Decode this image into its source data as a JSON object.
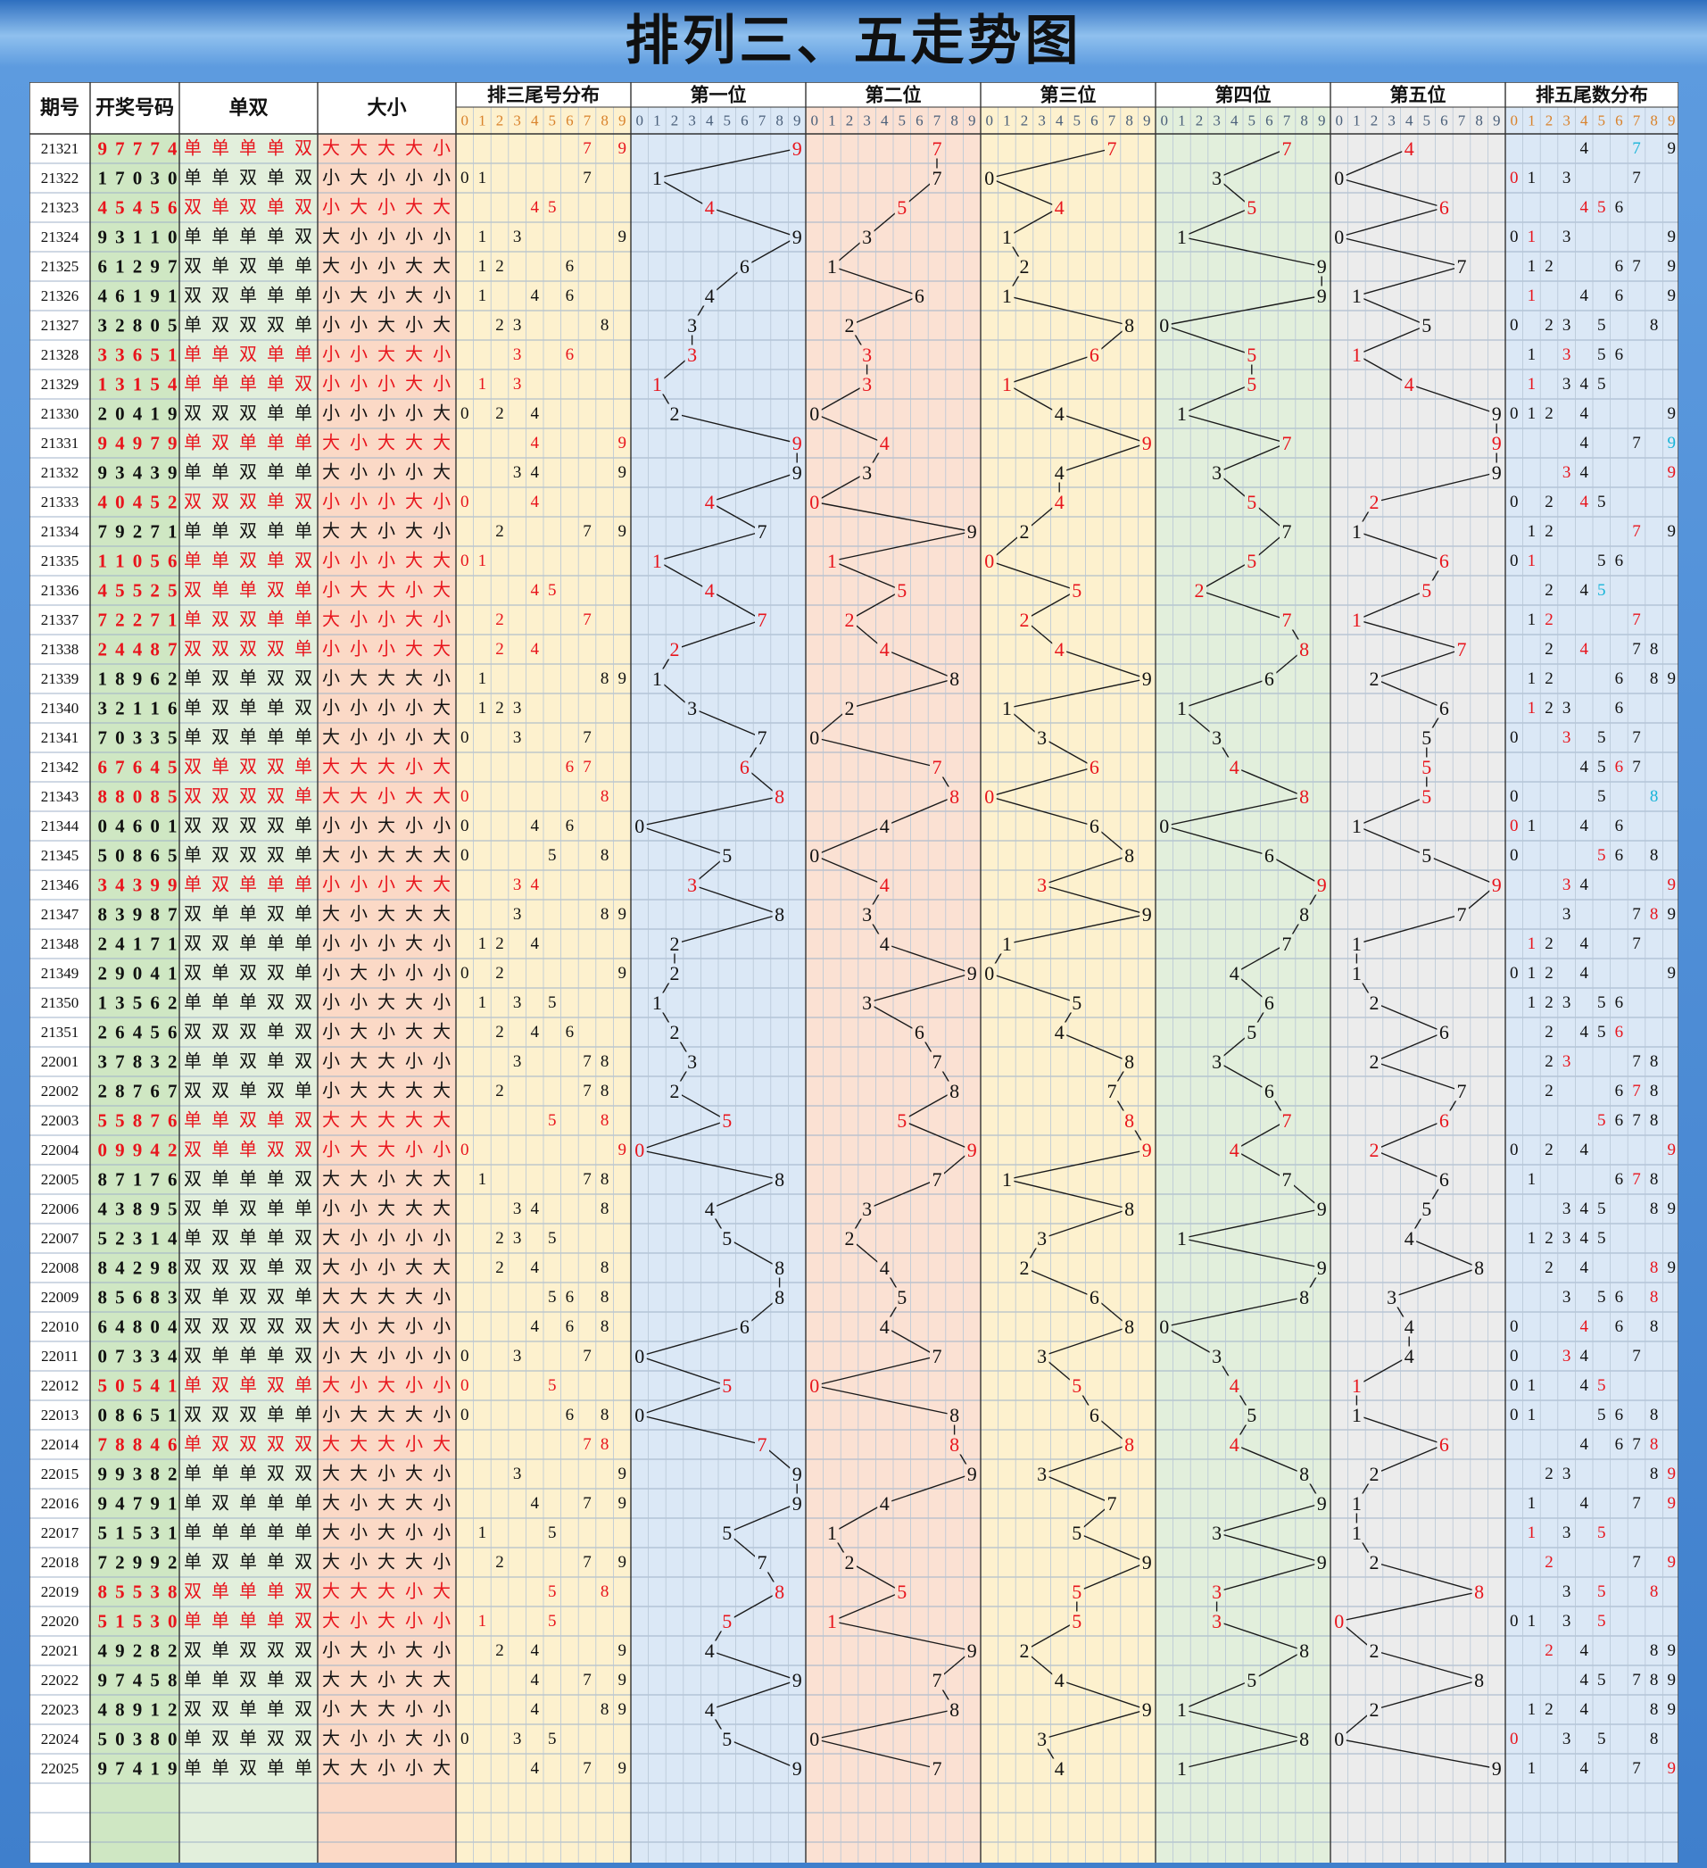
{
  "title": "排列三、五走势图",
  "headers": {
    "period": "期号",
    "draw": "开奖号码",
    "oddeven": "单双",
    "bigsmall": "大小",
    "p3dist": "排三尾号分布",
    "pos": [
      "第一位",
      "第二位",
      "第三位",
      "第四位",
      "第五位"
    ],
    "p5dist": "排五尾数分布"
  },
  "digits": [
    "0",
    "1",
    "2",
    "3",
    "4",
    "5",
    "6",
    "7",
    "8",
    "9"
  ],
  "labels": {
    "big": "大",
    "small": "小",
    "odd": "单",
    "even": "双"
  },
  "colors": {
    "red": "#e8141c",
    "black": "#111111",
    "cyan": "#18b4d8",
    "draw_bg": "#cfe7c3",
    "oe_bg": "#fbd9c6",
    "bs_bg": "#e2efdc",
    "p3_bg": "#fdf1ce",
    "pos_bg": [
      "#dbe8f6",
      "#fbe1d3",
      "#fdf1ce",
      "#e2efdc",
      "#ececec"
    ],
    "p5_bg": "#dbe8f6"
  },
  "chart_data": {
    "type": "table",
    "periods": [
      "21321",
      "21322",
      "21323",
      "21324",
      "21325",
      "21326",
      "21327",
      "21328",
      "21329",
      "21330",
      "21331",
      "21332",
      "21333",
      "21334",
      "21335",
      "21336",
      "21337",
      "21338",
      "21339",
      "21340",
      "21341",
      "21342",
      "21343",
      "21344",
      "21345",
      "21346",
      "21347",
      "21348",
      "21349",
      "21350",
      "21351",
      "22001",
      "22002",
      "22003",
      "22004",
      "22005",
      "22006",
      "22007",
      "22008",
      "22009",
      "22010",
      "22011",
      "22012",
      "22013",
      "22014",
      "22015",
      "22016",
      "22017",
      "22018",
      "22019",
      "22020",
      "22021",
      "22022",
      "22023",
      "22024",
      "22025"
    ],
    "draws": [
      "97774",
      "17030",
      "45456",
      "93110",
      "61297",
      "46191",
      "32805",
      "33651",
      "13154",
      "20419",
      "94979",
      "93439",
      "40452",
      "79271",
      "11056",
      "45525",
      "72271",
      "24487",
      "18962",
      "32116",
      "70335",
      "67645",
      "88085",
      "04601",
      "50865",
      "34399",
      "83987",
      "24171",
      "29041",
      "13562",
      "26456",
      "37832",
      "28767",
      "55876",
      "09942",
      "87176",
      "43895",
      "52314",
      "84298",
      "85683",
      "64804",
      "07334",
      "50541",
      "08651",
      "78846",
      "99382",
      "94791",
      "51531",
      "72992",
      "85538",
      "51530",
      "49282",
      "97458",
      "48912",
      "50380",
      "97419"
    ],
    "red_rows": [
      0,
      2,
      7,
      8,
      10,
      12,
      14,
      15,
      16,
      17,
      21,
      22,
      25,
      33,
      34,
      42,
      44,
      49,
      50
    ]
  }
}
